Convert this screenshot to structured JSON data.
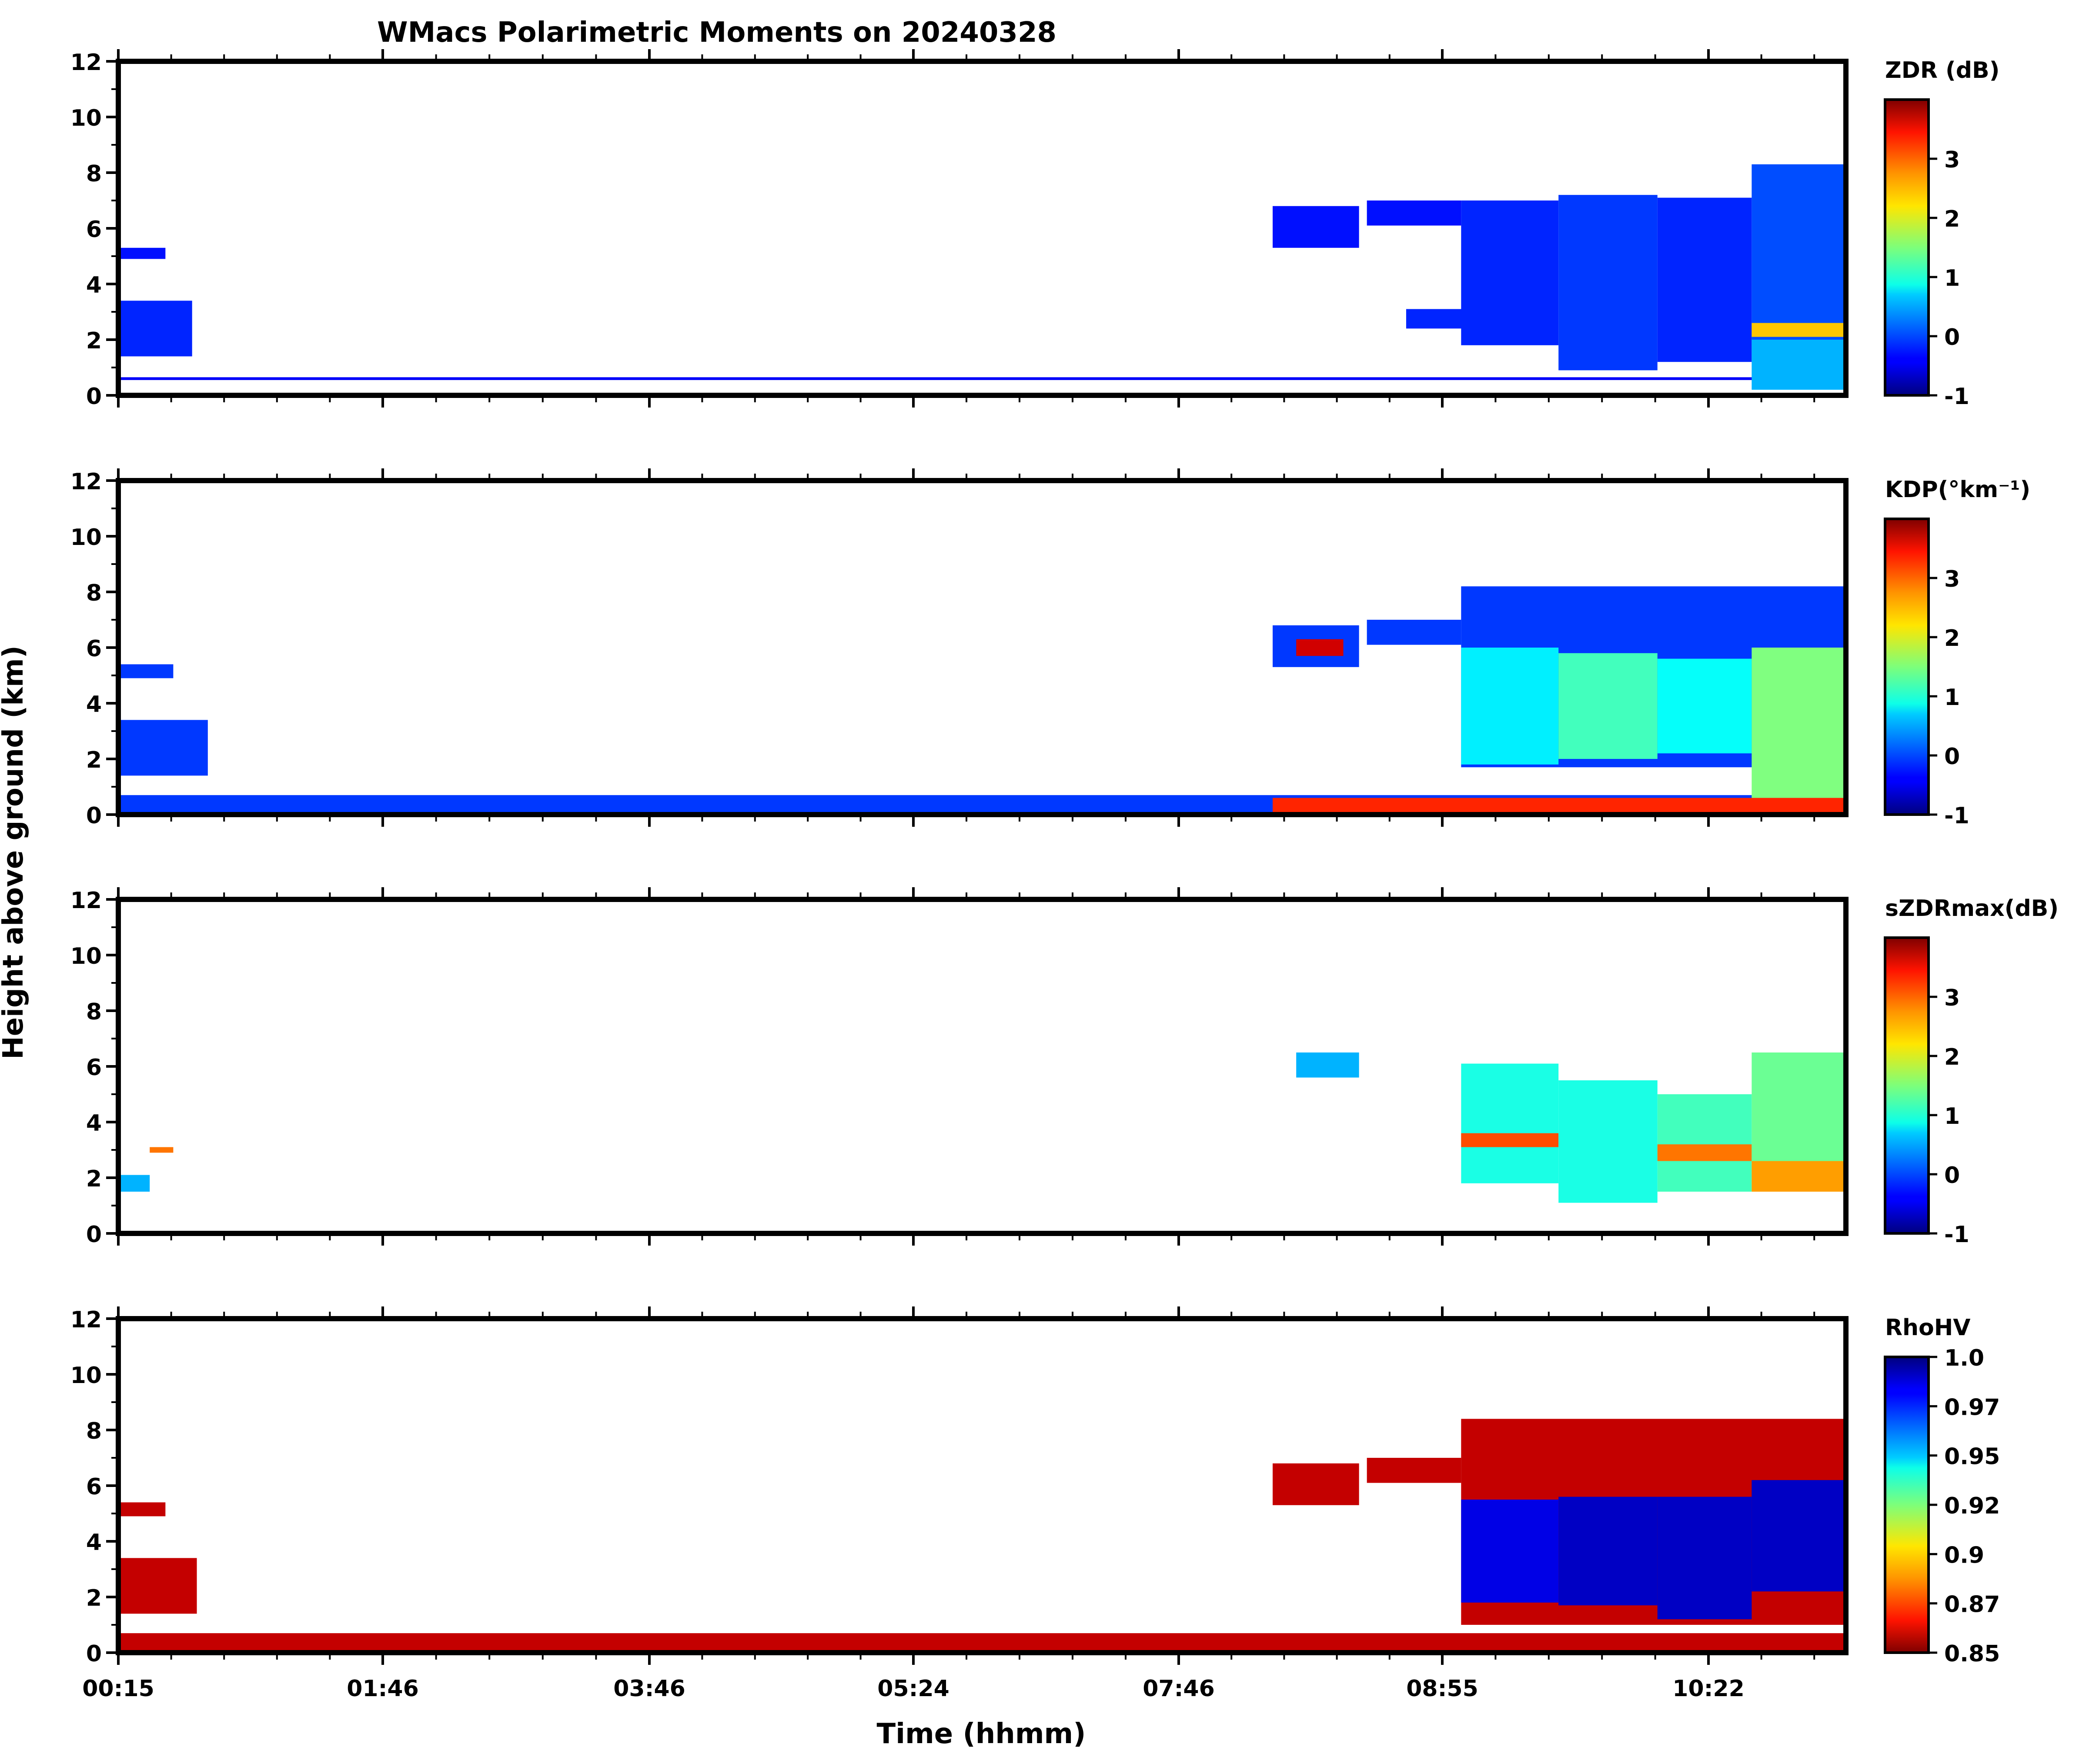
{
  "chart_data": {
    "type": "heatmap",
    "title": "WMacs Polarimetric Moments on 20240328",
    "xlabel": "Time (hhmm)",
    "ylabel": "Height above ground (km)",
    "x_tick_labels": [
      "00:15",
      "01:46",
      "03:46",
      "05:24",
      "07:46",
      "08:55",
      "10:22"
    ],
    "x_range_hours": [
      0.25,
      11.25
    ],
    "y_ticks": [
      "0",
      "2",
      "4",
      "6",
      "8",
      "10",
      "12"
    ],
    "ylim": [
      0,
      12
    ],
    "panels": [
      {
        "label": "ZDR (dB)",
        "colormap": "jet",
        "clim": [
          -1,
          4
        ],
        "colorbar_ticks": [
          {
            "v": 3,
            "t": "3"
          },
          {
            "v": 2,
            "t": "2"
          },
          {
            "v": 1,
            "t": "1"
          },
          {
            "v": 0,
            "t": "0"
          },
          {
            "v": -1,
            "t": "-1"
          }
        ],
        "blocks": [
          {
            "t0": 0.25,
            "t1": 0.72,
            "h0": 1.4,
            "h1": 3.4,
            "v": -0.2
          },
          {
            "t0": 0.25,
            "t1": 0.55,
            "h0": 4.9,
            "h1": 5.3,
            "v": -0.3
          },
          {
            "t0": 0.25,
            "t1": 11.25,
            "h0": 0.55,
            "h1": 0.65,
            "v": -0.4
          },
          {
            "t0": 7.6,
            "t1": 8.15,
            "h0": 5.3,
            "h1": 6.8,
            "v": -0.3
          },
          {
            "t0": 8.2,
            "t1": 8.8,
            "h0": 6.1,
            "h1": 7.0,
            "v": -0.3
          },
          {
            "t0": 8.45,
            "t1": 8.9,
            "h0": 2.4,
            "h1": 3.1,
            "v": -0.2
          },
          {
            "t0": 8.8,
            "t1": 9.42,
            "h0": 1.8,
            "h1": 7.0,
            "v": -0.2
          },
          {
            "t0": 9.42,
            "t1": 10.05,
            "h0": 0.9,
            "h1": 7.2,
            "v": -0.1
          },
          {
            "t0": 10.05,
            "t1": 10.65,
            "h0": 1.2,
            "h1": 7.1,
            "v": -0.2
          },
          {
            "t0": 10.65,
            "t1": 11.25,
            "h0": 1.8,
            "h1": 8.3,
            "v": 0.0
          },
          {
            "t0": 10.65,
            "t1": 11.25,
            "h0": 2.1,
            "h1": 2.6,
            "v": 2.4
          },
          {
            "t0": 10.65,
            "t1": 11.25,
            "h0": 0.2,
            "h1": 2.0,
            "v": 0.5
          }
        ]
      },
      {
        "label": "KDP(°km⁻¹)",
        "colormap": "jet",
        "clim": [
          -1,
          4
        ],
        "colorbar_ticks": [
          {
            "v": 3,
            "t": "3"
          },
          {
            "v": 2,
            "t": "2"
          },
          {
            "v": 1,
            "t": "1"
          },
          {
            "v": 0,
            "t": "0"
          },
          {
            "v": -1,
            "t": "-1"
          }
        ],
        "blocks": [
          {
            "t0": 0.25,
            "t1": 0.82,
            "h0": 1.4,
            "h1": 3.4,
            "v": -0.1
          },
          {
            "t0": 0.25,
            "t1": 0.6,
            "h0": 4.9,
            "h1": 5.4,
            "v": -0.1
          },
          {
            "t0": 0.25,
            "t1": 11.25,
            "h0": 0.0,
            "h1": 0.7,
            "v": -0.1
          },
          {
            "t0": 7.6,
            "t1": 8.15,
            "h0": 5.3,
            "h1": 6.8,
            "v": -0.1
          },
          {
            "t0": 7.75,
            "t1": 8.05,
            "h0": 5.7,
            "h1": 6.3,
            "v": 3.6
          },
          {
            "t0": 8.2,
            "t1": 8.8,
            "h0": 6.1,
            "h1": 7.0,
            "v": -0.1
          },
          {
            "t0": 8.8,
            "t1": 11.25,
            "h0": 1.7,
            "h1": 8.2,
            "v": -0.1
          },
          {
            "t0": 8.8,
            "t1": 9.42,
            "h0": 1.8,
            "h1": 6.0,
            "v": 0.8
          },
          {
            "t0": 9.42,
            "t1": 10.05,
            "h0": 2.0,
            "h1": 5.8,
            "v": 1.2
          },
          {
            "t0": 10.05,
            "t1": 10.65,
            "h0": 2.2,
            "h1": 5.6,
            "v": 0.9
          },
          {
            "t0": 10.65,
            "t1": 11.25,
            "h0": 0.4,
            "h1": 6.0,
            "v": 1.5
          },
          {
            "t0": 7.6,
            "t1": 11.25,
            "h0": 0.0,
            "h1": 0.6,
            "v": 3.2
          }
        ]
      },
      {
        "label": "sZDRmax(dB)",
        "colormap": "jet",
        "clim": [
          -1,
          4
        ],
        "colorbar_ticks": [
          {
            "v": 3,
            "t": "3"
          },
          {
            "v": 2,
            "t": "2"
          },
          {
            "v": 1,
            "t": "1"
          },
          {
            "v": 0,
            "t": "0"
          },
          {
            "v": -1,
            "t": "-1"
          }
        ],
        "blocks": [
          {
            "t0": 0.25,
            "t1": 0.45,
            "h0": 1.5,
            "h1": 2.1,
            "v": 0.5
          },
          {
            "t0": 0.45,
            "t1": 0.6,
            "h0": 2.9,
            "h1": 3.1,
            "v": 2.8
          },
          {
            "t0": 7.75,
            "t1": 8.15,
            "h0": 5.6,
            "h1": 6.5,
            "v": 0.5
          },
          {
            "t0": 8.8,
            "t1": 9.42,
            "h0": 1.8,
            "h1": 6.1,
            "v": 1.0
          },
          {
            "t0": 8.8,
            "t1": 9.42,
            "h0": 3.1,
            "h1": 3.6,
            "v": 3.0
          },
          {
            "t0": 9.42,
            "t1": 10.05,
            "h0": 1.1,
            "h1": 5.5,
            "v": 1.0
          },
          {
            "t0": 10.05,
            "t1": 10.65,
            "h0": 1.5,
            "h1": 5.0,
            "v": 1.2
          },
          {
            "t0": 10.05,
            "t1": 10.65,
            "h0": 2.6,
            "h1": 3.2,
            "v": 2.8
          },
          {
            "t0": 10.65,
            "t1": 11.25,
            "h0": 2.0,
            "h1": 6.5,
            "v": 1.4
          },
          {
            "t0": 10.65,
            "t1": 11.25,
            "h0": 1.5,
            "h1": 2.6,
            "v": 2.6
          }
        ]
      },
      {
        "label": "RhoHV",
        "colormap": "jet_r",
        "clim": [
          0.85,
          1.0
        ],
        "colorbar_ticks": [
          {
            "v": 1.0,
            "t": "1.0"
          },
          {
            "v": 0.975,
            "t": "0.97"
          },
          {
            "v": 0.95,
            "t": "0.95"
          },
          {
            "v": 0.925,
            "t": "0.92"
          },
          {
            "v": 0.9,
            "t": "0.9"
          },
          {
            "v": 0.875,
            "t": "0.87"
          },
          {
            "v": 0.85,
            "t": "0.85"
          }
        ],
        "blocks": [
          {
            "t0": 0.25,
            "t1": 0.75,
            "h0": 1.4,
            "h1": 3.4,
            "v": 0.86
          },
          {
            "t0": 0.25,
            "t1": 0.55,
            "h0": 4.9,
            "h1": 5.4,
            "v": 0.86
          },
          {
            "t0": 0.25,
            "t1": 11.25,
            "h0": 0.0,
            "h1": 0.7,
            "v": 0.86
          },
          {
            "t0": 7.6,
            "t1": 8.15,
            "h0": 5.3,
            "h1": 6.8,
            "v": 0.86
          },
          {
            "t0": 8.2,
            "t1": 8.8,
            "h0": 6.1,
            "h1": 7.0,
            "v": 0.86
          },
          {
            "t0": 8.8,
            "t1": 11.25,
            "h0": 1.0,
            "h1": 8.4,
            "v": 0.86
          },
          {
            "t0": 8.8,
            "t1": 9.42,
            "h0": 1.8,
            "h1": 5.5,
            "v": 0.985
          },
          {
            "t0": 9.42,
            "t1": 10.05,
            "h0": 1.7,
            "h1": 5.6,
            "v": 0.99
          },
          {
            "t0": 10.05,
            "t1": 10.65,
            "h0": 1.2,
            "h1": 5.6,
            "v": 0.99
          },
          {
            "t0": 10.65,
            "t1": 11.25,
            "h0": 2.2,
            "h1": 6.2,
            "v": 0.99
          }
        ]
      }
    ]
  }
}
